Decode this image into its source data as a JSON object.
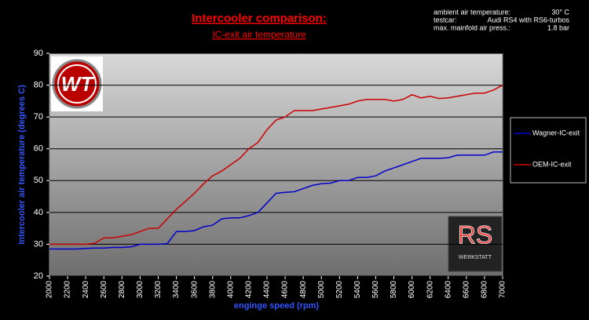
{
  "chart_data": {
    "type": "line",
    "title": "Intercooler comparison:",
    "subtitle": "IC-exit air temperature",
    "info": [
      [
        "ambient air temperature:",
        "30° C"
      ],
      [
        "testcar:",
        "Audi RS4 with RS6-turbos"
      ],
      [
        "max. mainfold air press.:",
        "1.8 bar"
      ]
    ],
    "x_label": "enginge speed (rpm)",
    "y_label": "Intercooler air temperature (degrees C)",
    "x": [
      2000,
      2100,
      2200,
      2300,
      2400,
      2500,
      2600,
      2700,
      2800,
      2900,
      3000,
      3100,
      3200,
      3300,
      3400,
      3500,
      3600,
      3700,
      3800,
      3900,
      4000,
      4100,
      4200,
      4300,
      4400,
      4500,
      4600,
      4700,
      4800,
      4900,
      5000,
      5100,
      5200,
      5300,
      5400,
      5500,
      5600,
      5700,
      5800,
      5900,
      6000,
      6100,
      6200,
      6300,
      6400,
      6500,
      6600,
      6700,
      6800,
      6900,
      7000
    ],
    "series": [
      {
        "name": "Wagner-IC-exit",
        "color": "#0000cc",
        "values": [
          28.5,
          28.5,
          28.5,
          28.5,
          28.7,
          28.8,
          28.8,
          29,
          29,
          29.2,
          30,
          30,
          30,
          30.2,
          34,
          34,
          34.3,
          35.5,
          36,
          38,
          38.3,
          38.3,
          39,
          40,
          43,
          46,
          46.3,
          46.5,
          47.5,
          48.5,
          49,
          49.2,
          50,
          50,
          51,
          51,
          51.5,
          53,
          54,
          55,
          56,
          57,
          57,
          57,
          57.2,
          58,
          58,
          58,
          58,
          59,
          59
        ]
      },
      {
        "name": "OEM-IC-exit",
        "color": "#cc0000",
        "values": [
          30,
          30,
          30,
          30,
          30,
          30.3,
          32,
          32,
          32.5,
          33,
          34,
          35,
          35,
          38,
          41,
          43.5,
          46,
          49,
          51.5,
          53,
          55,
          57,
          60,
          62,
          66,
          69,
          70,
          72,
          72,
          72,
          72.5,
          73,
          73.5,
          74,
          75,
          75.5,
          75.5,
          75.5,
          75,
          75.5,
          77,
          76,
          76.5,
          75.8,
          76,
          76.5,
          77,
          77.5,
          77.5,
          78.5,
          80
        ]
      }
    ],
    "xlim": [
      2000,
      7000
    ],
    "xticks": [
      2000,
      2200,
      2400,
      2600,
      2800,
      3000,
      3200,
      3400,
      3600,
      3800,
      4000,
      4200,
      4400,
      4600,
      4800,
      5000,
      5200,
      5400,
      5600,
      5800,
      6000,
      6200,
      6400,
      6600,
      6800,
      7000
    ],
    "ylim": [
      20,
      90
    ],
    "yticks": [
      20,
      30,
      40,
      50,
      60,
      70,
      80,
      90
    ],
    "grid": true,
    "legend": "right"
  },
  "logos": {
    "left": "WT",
    "right": "RS",
    "right_caption": "WERKSTATT"
  }
}
